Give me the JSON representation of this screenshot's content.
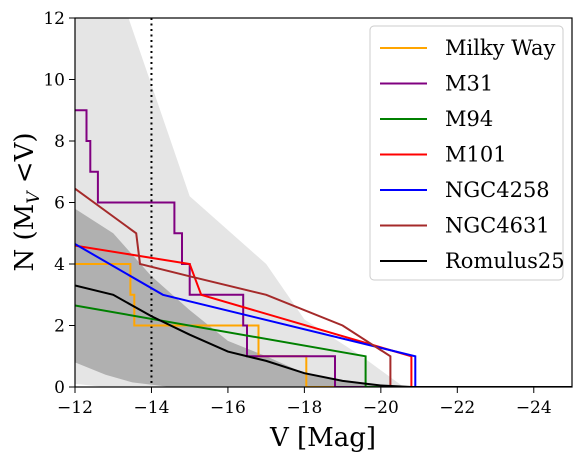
{
  "chart_data": {
    "type": "line",
    "title": "",
    "xlabel": "V [Mag]",
    "ylabel": "N (M_V <V)",
    "ylabel_parts": {
      "main": "N (M",
      "sub": "V",
      "rest": " <V)"
    },
    "xlim": [
      -12,
      -25
    ],
    "ylim": [
      0,
      12
    ],
    "xticks": [
      -12,
      -14,
      -16,
      -18,
      -20,
      -22,
      -24
    ],
    "xtick_labels": [
      "−12",
      "−14",
      "−16",
      "−18",
      "−20",
      "−22",
      "−24"
    ],
    "yticks": [
      0,
      2,
      4,
      6,
      8,
      10,
      12
    ],
    "ytick_labels": [
      "0",
      "2",
      "4",
      "6",
      "8",
      "10",
      "12"
    ],
    "grid": false,
    "legend_position": "top-right",
    "vline": {
      "x": -14,
      "style": "dotted",
      "color": "#000000"
    },
    "bands": [
      {
        "color": "#e5e5e5",
        "upper": [
          [
            -12,
            12
          ],
          [
            -13.4,
            12
          ],
          [
            -15,
            6.2
          ],
          [
            -17,
            4
          ],
          [
            -18,
            2.2
          ],
          [
            -19.5,
            1
          ],
          [
            -20.6,
            0
          ]
        ],
        "lower": [
          [
            -12,
            0.1
          ],
          [
            -12.8,
            0
          ],
          [
            -20.6,
            0
          ]
        ]
      },
      {
        "color": "#b0b0b0",
        "upper": [
          [
            -12,
            5.8
          ],
          [
            -13,
            5
          ],
          [
            -14,
            3.6
          ],
          [
            -15,
            2.5
          ],
          [
            -16,
            1.5
          ],
          [
            -17,
            1
          ],
          [
            -18,
            0.45
          ],
          [
            -19,
            0.2
          ],
          [
            -20.6,
            0
          ]
        ],
        "lower": [
          [
            -12,
            0.8
          ],
          [
            -12.8,
            0.4
          ],
          [
            -13.5,
            0.15
          ],
          [
            -14.5,
            0
          ],
          [
            -20.6,
            0
          ]
        ]
      }
    ],
    "series": [
      {
        "name": "Milky Way",
        "color": "#ffa500",
        "points": [
          [
            -12,
            4
          ],
          [
            -13.45,
            4
          ],
          [
            -13.45,
            3
          ],
          [
            -13.55,
            3
          ],
          [
            -13.55,
            2
          ],
          [
            -16.8,
            2
          ],
          [
            -16.8,
            1
          ],
          [
            -18.05,
            1
          ],
          [
            -18.05,
            0
          ],
          [
            -25,
            0
          ]
        ]
      },
      {
        "name": "M31",
        "color": "#800080",
        "points": [
          [
            -12,
            9
          ],
          [
            -12.3,
            9
          ],
          [
            -12.3,
            8
          ],
          [
            -12.4,
            8
          ],
          [
            -12.4,
            7
          ],
          [
            -12.6,
            7
          ],
          [
            -12.6,
            6
          ],
          [
            -14.6,
            6
          ],
          [
            -14.6,
            5
          ],
          [
            -14.8,
            5
          ],
          [
            -14.8,
            4
          ],
          [
            -15,
            4
          ],
          [
            -15,
            3
          ],
          [
            -16.4,
            3
          ],
          [
            -16.4,
            2
          ],
          [
            -16.5,
            2
          ],
          [
            -16.5,
            1
          ],
          [
            -18.8,
            1
          ],
          [
            -18.8,
            0
          ],
          [
            -25,
            0
          ]
        ]
      },
      {
        "name": "M94",
        "color": "#008000",
        "points": [
          [
            -12,
            2.65
          ],
          [
            -19.6,
            1
          ],
          [
            -19.6,
            0
          ],
          [
            -25,
            0
          ]
        ]
      },
      {
        "name": "M101",
        "color": "#ff0000",
        "points": [
          [
            -12,
            4.6
          ],
          [
            -15,
            4
          ],
          [
            -15.3,
            3
          ],
          [
            -20.8,
            1
          ],
          [
            -20.8,
            0
          ],
          [
            -25,
            0
          ]
        ]
      },
      {
        "name": "NGC4258",
        "color": "#0000ff",
        "points": [
          [
            -12,
            4.65
          ],
          [
            -14.3,
            3
          ],
          [
            -20.9,
            1
          ],
          [
            -20.9,
            0
          ],
          [
            -25,
            0
          ]
        ]
      },
      {
        "name": "NGC4631",
        "color": "#a52a2a",
        "points": [
          [
            -12,
            6.45
          ],
          [
            -13.6,
            5
          ],
          [
            -13.7,
            4
          ],
          [
            -15,
            3.6
          ],
          [
            -17,
            3
          ],
          [
            -19,
            2
          ],
          [
            -20.25,
            1
          ],
          [
            -20.25,
            0
          ],
          [
            -25,
            0
          ]
        ]
      },
      {
        "name": "Romulus25",
        "color": "#000000",
        "points": [
          [
            -12,
            3.3
          ],
          [
            -13,
            3
          ],
          [
            -14,
            2.3
          ],
          [
            -15,
            1.7
          ],
          [
            -16,
            1.15
          ],
          [
            -17,
            0.85
          ],
          [
            -18,
            0.45
          ],
          [
            -19,
            0.2
          ],
          [
            -20,
            0.05
          ],
          [
            -20.8,
            0
          ],
          [
            -25,
            0
          ]
        ]
      }
    ]
  }
}
